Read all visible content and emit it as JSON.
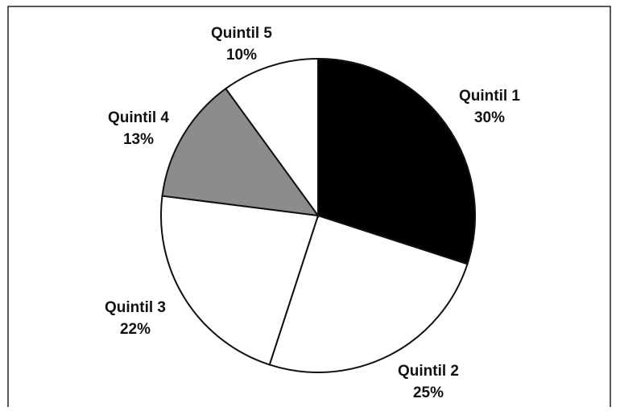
{
  "chart_data": {
    "type": "pie",
    "categories": [
      "Quintil 1",
      "Quintil 2",
      "Quintil 3",
      "Quintil 4",
      "Quintil 5"
    ],
    "values": [
      30,
      25,
      22,
      13,
      10
    ],
    "value_labels": [
      "30%",
      "25%",
      "22%",
      "13%",
      "10%"
    ],
    "colors": [
      "#000000",
      "#ffffff",
      "#ffffff",
      "#8c8c8c",
      "#ffffff"
    ]
  }
}
